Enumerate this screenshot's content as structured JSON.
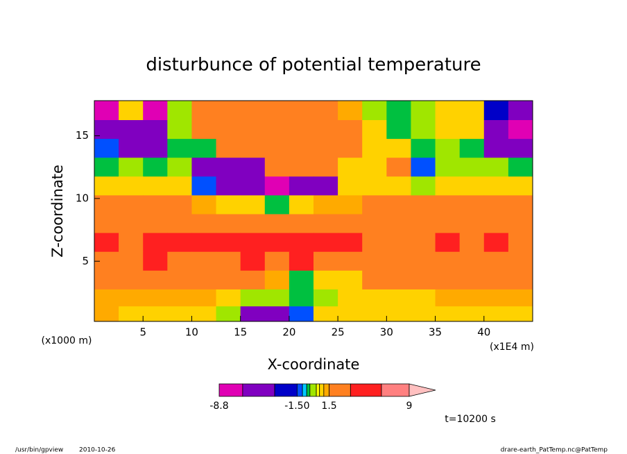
{
  "chart_data": {
    "type": "contour",
    "title": "disturbunce of potential temperature",
    "x_label": "X-coordinate",
    "y_label": "Z-coordinate",
    "x_unit_label": "(x1E4 m)",
    "y_unit_label": "(x1000 m)",
    "xlim": [
      0,
      45
    ],
    "ylim": [
      0.2,
      17.8
    ],
    "xticks": [
      5,
      10,
      15,
      20,
      25,
      30,
      35,
      40
    ],
    "yticks": [
      5,
      10,
      15
    ],
    "x": [
      1.25,
      3.75,
      6.25,
      8.75,
      11.25,
      13.75,
      16.25,
      18.75,
      21.25,
      23.75,
      26.25,
      28.75,
      31.25,
      33.75,
      36.25,
      38.75,
      41.25,
      43.75
    ],
    "y": [
      17,
      15.5,
      14,
      12.5,
      11,
      9.5,
      8,
      6.5,
      5,
      3.5,
      2,
      0.8
    ],
    "z": [
      [
        -7,
        0.8,
        -7,
        0.1,
        2.5,
        2.5,
        2.5,
        2.5,
        2.5,
        2.5,
        1.2,
        0.1,
        -0.5,
        0.1,
        0.6,
        0.8,
        -3,
        -4
      ],
      [
        -4,
        -4,
        -4,
        0.1,
        2.5,
        2.5,
        2.5,
        2.5,
        2.5,
        2.5,
        2.5,
        0.6,
        -0.5,
        0.1,
        0.8,
        0.6,
        -4,
        -7
      ],
      [
        -1.3,
        -4,
        -4,
        -0.5,
        -0.5,
        2.5,
        2.5,
        2.5,
        2.5,
        2.5,
        2.5,
        0.6,
        0.8,
        -0.5,
        0.1,
        -0.5,
        -4,
        -4
      ],
      [
        -0.5,
        0.1,
        -0.5,
        0.1,
        -4,
        -4,
        -4,
        2.5,
        2.5,
        2.5,
        0.8,
        0.8,
        2.5,
        -1.3,
        0.1,
        0.1,
        0.1,
        -0.5
      ],
      [
        0.6,
        0.8,
        0.6,
        0.6,
        -1.3,
        -4,
        -4,
        -7,
        -4,
        -4,
        0.8,
        0.8,
        0.6,
        0.1,
        0.8,
        0.6,
        0.6,
        0.8
      ],
      [
        2.5,
        2.5,
        2.5,
        2.5,
        1.2,
        0.8,
        0.6,
        -0.5,
        0.8,
        1.2,
        1.2,
        2.5,
        2.5,
        2.5,
        2.5,
        2.5,
        2.5,
        2.5
      ],
      [
        2.5,
        2.5,
        2.5,
        2.5,
        2.5,
        2.5,
        2.5,
        2.5,
        2.5,
        2.5,
        2.5,
        2.5,
        2.5,
        2.5,
        2.5,
        2.5,
        2.5,
        2.5
      ],
      [
        5,
        2.5,
        5,
        5,
        5,
        5,
        5,
        5,
        5,
        5,
        5,
        2.5,
        2.5,
        2.5,
        5,
        2.5,
        5,
        2.5
      ],
      [
        2.5,
        2.5,
        5,
        2.5,
        2.5,
        2.5,
        5,
        2.5,
        5,
        2.5,
        2.5,
        2.5,
        2.5,
        2.5,
        2.5,
        2.5,
        2.5,
        2.5
      ],
      [
        2.5,
        2.5,
        2.5,
        2.5,
        2.5,
        2.5,
        2.5,
        1.2,
        -0.5,
        0.8,
        0.8,
        2.5,
        2.5,
        2.5,
        2.5,
        2.5,
        2.5,
        2.5
      ],
      [
        1.2,
        1.2,
        1.2,
        1.2,
        1.2,
        0.8,
        0.1,
        0.1,
        -0.5,
        0.1,
        0.8,
        0.6,
        0.8,
        0.8,
        1.2,
        1.2,
        1.2,
        1.2
      ],
      [
        1.2,
        0.8,
        0.8,
        0.8,
        0.6,
        0.1,
        -4,
        -4,
        -1.3,
        0.6,
        0.8,
        0.6,
        0.8,
        0.6,
        0.6,
        0.6,
        0.8,
        0.8
      ]
    ],
    "levels": [
      -8.8,
      -6.6,
      -3.6,
      -1.5,
      -1.0,
      -0.6,
      -0.3,
      0.3,
      0.6,
      1.0,
      1.5,
      3.5,
      6.4,
      9
    ],
    "colors": [
      "#e000b4",
      "#8000c0",
      "#0000c8",
      "#0050ff",
      "#00c8ff",
      "#00c040",
      "#a0e600",
      "#ffff00",
      "#ffd200",
      "#ffaa00",
      "#ff8020",
      "#ff2020",
      "#ff8080",
      "#ffc0c0"
    ],
    "colorbar_ticks": [
      -8.8,
      {
        "value": -1.5,
        "label": "-1.50"
      },
      1.5,
      9
    ],
    "time_label": "t=10200 s",
    "footer_left": [
      "/usr/bin/gpview",
      "2010-10-26"
    ],
    "footer_right": "drare-earth_PatTemp.nc@PatTemp"
  }
}
